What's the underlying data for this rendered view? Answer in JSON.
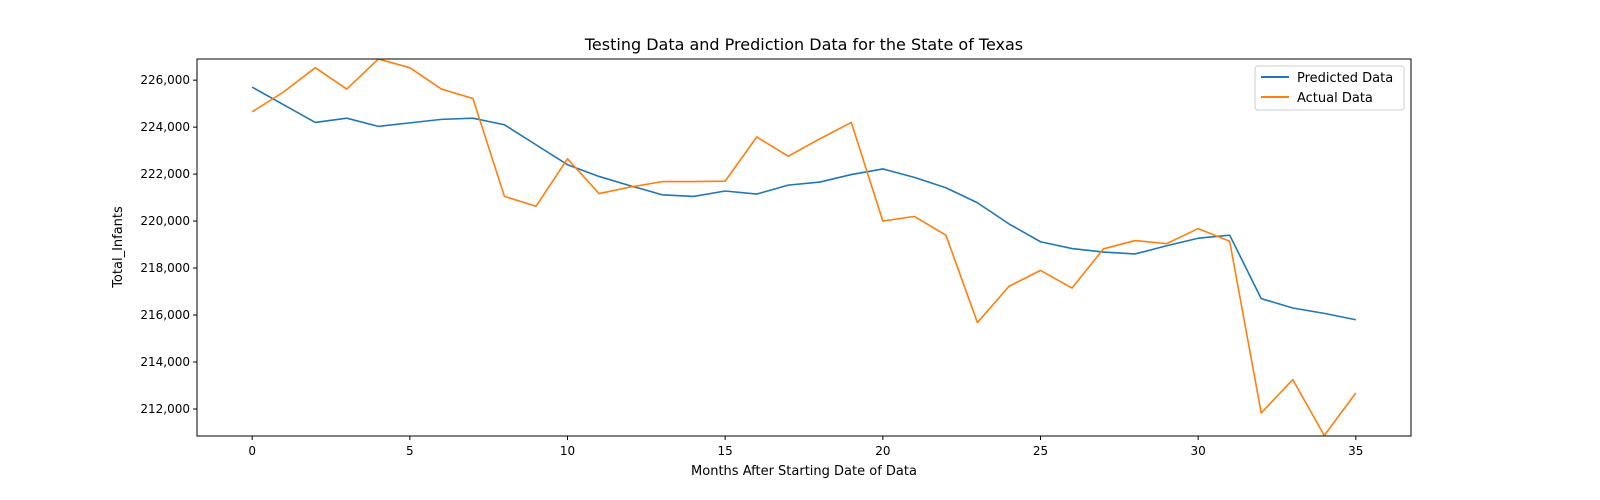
{
  "chart_data": {
    "type": "line",
    "title": "Testing Data and Prediction Data for the State of Texas",
    "xlabel": "Months After Starting Date of Data",
    "ylabel": "Total_Infants",
    "xlim": [
      -1.75,
      36.75
    ],
    "ylim": [
      210850,
      226900
    ],
    "x_ticks": [
      0,
      5,
      10,
      15,
      20,
      25,
      30,
      35
    ],
    "y_ticks": [
      212000,
      214000,
      216000,
      218000,
      220000,
      222000,
      224000,
      226000
    ],
    "y_tick_labels": [
      "212,000",
      "214,000",
      "216,000",
      "218,000",
      "220,000",
      "222,000",
      "224,000",
      "226,000"
    ],
    "legend_position": "top-right",
    "grid": false,
    "x": [
      0,
      1,
      2,
      3,
      4,
      5,
      6,
      7,
      8,
      9,
      10,
      11,
      12,
      13,
      14,
      15,
      16,
      17,
      18,
      19,
      20,
      21,
      22,
      23,
      24,
      25,
      26,
      27,
      28,
      29,
      30,
      31,
      32,
      33,
      34,
      35
    ],
    "series": [
      {
        "name": "Predicted Data",
        "color": "#1f77b4",
        "values": [
          225700,
          224950,
          224200,
          224380,
          224030,
          224180,
          224330,
          224380,
          224100,
          223250,
          222400,
          221900,
          221500,
          221120,
          221050,
          221280,
          221150,
          221530,
          221660,
          221980,
          222220,
          221860,
          221420,
          220780,
          219880,
          219120,
          218830,
          218680,
          218600,
          218950,
          219270,
          219400,
          216700,
          216300,
          216070,
          215800
        ]
      },
      {
        "name": "Actual Data",
        "color": "#ff7f0e",
        "values": [
          224650,
          225500,
          226530,
          225620,
          226900,
          226530,
          225620,
          225220,
          221050,
          220630,
          222650,
          221170,
          221450,
          221680,
          221680,
          221700,
          223580,
          222760,
          223500,
          224200,
          220000,
          220200,
          219400,
          215680,
          217220,
          217900,
          217150,
          218820,
          219170,
          219040,
          219680,
          219140,
          211830,
          213250,
          210870,
          212680
        ]
      }
    ]
  }
}
